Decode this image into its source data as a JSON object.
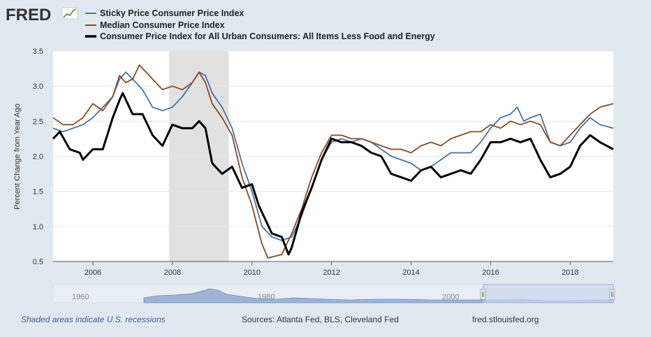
{
  "brand": {
    "logo_text": "FRED"
  },
  "footer": {
    "recession_note": "Shaded areas indicate U.S. recessions",
    "sources": "Sources: Atlanta Fed, BLS, Cleveland Fed",
    "site": "fred.stlouisfed.org"
  },
  "colors": {
    "sticky": "#4572a7",
    "median": "#8b4a20",
    "core": "#000000",
    "recession": "#e1e1e1",
    "navigator": "#9fb3d6"
  },
  "navigator": {
    "labels": [
      "1960",
      "1980",
      "2000"
    ]
  },
  "chart_data": {
    "type": "line",
    "ylabel": "Percent Change from Year Ago",
    "ylim": [
      0.5,
      3.5
    ],
    "yticks": [
      0.5,
      1.0,
      1.5,
      2.0,
      2.5,
      3.0,
      3.5
    ],
    "ytick_labels": [
      "0.5",
      "1.0",
      "1.5",
      "2.0",
      "2.5",
      "3.0",
      "3.5"
    ],
    "xlim": [
      2005.0,
      2019.0833
    ],
    "xticks": [
      2006,
      2008,
      2010,
      2012,
      2014,
      2016,
      2018
    ],
    "xtick_labels": [
      "2006",
      "2008",
      "2010",
      "2012",
      "2014",
      "2016",
      "2018"
    ],
    "recession": [
      2007.917,
      2009.417
    ],
    "legend_position": "top-left",
    "series": [
      {
        "name": "Sticky Price Consumer Price Index",
        "key": "sticky",
        "points": [
          [
            2005.0,
            2.4
          ],
          [
            2005.25,
            2.35
          ],
          [
            2005.5,
            2.4
          ],
          [
            2005.75,
            2.45
          ],
          [
            2006.0,
            2.55
          ],
          [
            2006.25,
            2.7
          ],
          [
            2006.5,
            2.85
          ],
          [
            2006.67,
            3.1
          ],
          [
            2006.83,
            3.2
          ],
          [
            2007.0,
            3.1
          ],
          [
            2007.25,
            2.95
          ],
          [
            2007.5,
            2.7
          ],
          [
            2007.75,
            2.65
          ],
          [
            2008.0,
            2.7
          ],
          [
            2008.25,
            2.85
          ],
          [
            2008.5,
            3.05
          ],
          [
            2008.67,
            3.2
          ],
          [
            2008.83,
            3.15
          ],
          [
            2009.0,
            2.9
          ],
          [
            2009.25,
            2.7
          ],
          [
            2009.5,
            2.4
          ],
          [
            2009.75,
            1.9
          ],
          [
            2010.0,
            1.5
          ],
          [
            2010.25,
            1.0
          ],
          [
            2010.5,
            0.85
          ],
          [
            2010.75,
            0.8
          ],
          [
            2011.0,
            0.85
          ],
          [
            2011.25,
            1.15
          ],
          [
            2011.5,
            1.55
          ],
          [
            2011.75,
            1.95
          ],
          [
            2012.0,
            2.2
          ],
          [
            2012.25,
            2.25
          ],
          [
            2012.5,
            2.2
          ],
          [
            2012.75,
            2.25
          ],
          [
            2013.0,
            2.2
          ],
          [
            2013.25,
            2.1
          ],
          [
            2013.5,
            2.0
          ],
          [
            2013.75,
            1.95
          ],
          [
            2014.0,
            1.9
          ],
          [
            2014.25,
            1.8
          ],
          [
            2014.5,
            1.85
          ],
          [
            2014.75,
            1.95
          ],
          [
            2015.0,
            2.05
          ],
          [
            2015.25,
            2.05
          ],
          [
            2015.5,
            2.05
          ],
          [
            2015.75,
            2.2
          ],
          [
            2016.0,
            2.4
          ],
          [
            2016.25,
            2.55
          ],
          [
            2016.5,
            2.6
          ],
          [
            2016.67,
            2.7
          ],
          [
            2016.83,
            2.5
          ],
          [
            2017.0,
            2.55
          ],
          [
            2017.25,
            2.6
          ],
          [
            2017.5,
            2.2
          ],
          [
            2017.75,
            2.15
          ],
          [
            2018.0,
            2.2
          ],
          [
            2018.25,
            2.4
          ],
          [
            2018.5,
            2.55
          ],
          [
            2018.75,
            2.45
          ],
          [
            2019.0833,
            2.4
          ]
        ]
      },
      {
        "name": "Median Consumer Price Index",
        "key": "median",
        "points": [
          [
            2005.0,
            2.55
          ],
          [
            2005.25,
            2.45
          ],
          [
            2005.5,
            2.45
          ],
          [
            2005.75,
            2.55
          ],
          [
            2006.0,
            2.75
          ],
          [
            2006.25,
            2.65
          ],
          [
            2006.5,
            2.85
          ],
          [
            2006.67,
            3.15
          ],
          [
            2006.83,
            3.05
          ],
          [
            2007.0,
            3.1
          ],
          [
            2007.17,
            3.3
          ],
          [
            2007.5,
            3.1
          ],
          [
            2007.75,
            2.95
          ],
          [
            2008.0,
            3.0
          ],
          [
            2008.25,
            2.95
          ],
          [
            2008.5,
            3.05
          ],
          [
            2008.67,
            3.2
          ],
          [
            2008.83,
            3.05
          ],
          [
            2009.0,
            2.75
          ],
          [
            2009.25,
            2.55
          ],
          [
            2009.5,
            2.3
          ],
          [
            2009.75,
            1.7
          ],
          [
            2010.0,
            1.3
          ],
          [
            2010.25,
            0.75
          ],
          [
            2010.4,
            0.55
          ],
          [
            2010.75,
            0.6
          ],
          [
            2011.0,
            0.9
          ],
          [
            2011.25,
            1.25
          ],
          [
            2011.5,
            1.7
          ],
          [
            2011.75,
            2.05
          ],
          [
            2012.0,
            2.3
          ],
          [
            2012.25,
            2.3
          ],
          [
            2012.5,
            2.25
          ],
          [
            2012.75,
            2.25
          ],
          [
            2013.0,
            2.2
          ],
          [
            2013.25,
            2.15
          ],
          [
            2013.5,
            2.1
          ],
          [
            2013.75,
            2.1
          ],
          [
            2014.0,
            2.05
          ],
          [
            2014.25,
            2.15
          ],
          [
            2014.5,
            2.2
          ],
          [
            2014.75,
            2.15
          ],
          [
            2015.0,
            2.25
          ],
          [
            2015.25,
            2.3
          ],
          [
            2015.5,
            2.35
          ],
          [
            2015.75,
            2.35
          ],
          [
            2016.0,
            2.45
          ],
          [
            2016.25,
            2.4
          ],
          [
            2016.5,
            2.5
          ],
          [
            2016.75,
            2.45
          ],
          [
            2017.0,
            2.5
          ],
          [
            2017.25,
            2.45
          ],
          [
            2017.5,
            2.2
          ],
          [
            2017.75,
            2.15
          ],
          [
            2018.0,
            2.3
          ],
          [
            2018.25,
            2.45
          ],
          [
            2018.5,
            2.6
          ],
          [
            2018.75,
            2.7
          ],
          [
            2019.0833,
            2.75
          ]
        ]
      },
      {
        "name": "Consumer Price Index for All Urban Consumers: All Items Less Food and Energy",
        "key": "core",
        "points": [
          [
            2005.0,
            2.25
          ],
          [
            2005.17,
            2.35
          ],
          [
            2005.42,
            2.1
          ],
          [
            2005.67,
            2.05
          ],
          [
            2005.75,
            1.95
          ],
          [
            2006.0,
            2.1
          ],
          [
            2006.25,
            2.1
          ],
          [
            2006.5,
            2.55
          ],
          [
            2006.67,
            2.8
          ],
          [
            2006.75,
            2.9
          ],
          [
            2007.0,
            2.6
          ],
          [
            2007.25,
            2.6
          ],
          [
            2007.5,
            2.3
          ],
          [
            2007.75,
            2.15
          ],
          [
            2008.0,
            2.45
          ],
          [
            2008.25,
            2.4
          ],
          [
            2008.5,
            2.4
          ],
          [
            2008.67,
            2.5
          ],
          [
            2008.83,
            2.4
          ],
          [
            2009.0,
            1.9
          ],
          [
            2009.25,
            1.75
          ],
          [
            2009.5,
            1.85
          ],
          [
            2009.75,
            1.55
          ],
          [
            2010.0,
            1.6
          ],
          [
            2010.17,
            1.3
          ],
          [
            2010.5,
            0.9
          ],
          [
            2010.75,
            0.85
          ],
          [
            2010.92,
            0.6
          ],
          [
            2011.0,
            0.7
          ],
          [
            2011.25,
            1.2
          ],
          [
            2011.5,
            1.55
          ],
          [
            2011.75,
            1.95
          ],
          [
            2012.0,
            2.25
          ],
          [
            2012.25,
            2.2
          ],
          [
            2012.5,
            2.2
          ],
          [
            2012.75,
            2.15
          ],
          [
            2013.0,
            2.05
          ],
          [
            2013.25,
            2.0
          ],
          [
            2013.5,
            1.75
          ],
          [
            2013.75,
            1.7
          ],
          [
            2014.0,
            1.65
          ],
          [
            2014.25,
            1.8
          ],
          [
            2014.5,
            1.85
          ],
          [
            2014.75,
            1.7
          ],
          [
            2015.0,
            1.75
          ],
          [
            2015.25,
            1.8
          ],
          [
            2015.5,
            1.75
          ],
          [
            2015.75,
            1.95
          ],
          [
            2016.0,
            2.2
          ],
          [
            2016.25,
            2.2
          ],
          [
            2016.5,
            2.25
          ],
          [
            2016.75,
            2.2
          ],
          [
            2017.0,
            2.25
          ],
          [
            2017.25,
            1.95
          ],
          [
            2017.5,
            1.7
          ],
          [
            2017.75,
            1.75
          ],
          [
            2018.0,
            1.85
          ],
          [
            2018.25,
            2.15
          ],
          [
            2018.5,
            2.3
          ],
          [
            2018.75,
            2.2
          ],
          [
            2019.0833,
            2.1
          ]
        ]
      }
    ]
  }
}
